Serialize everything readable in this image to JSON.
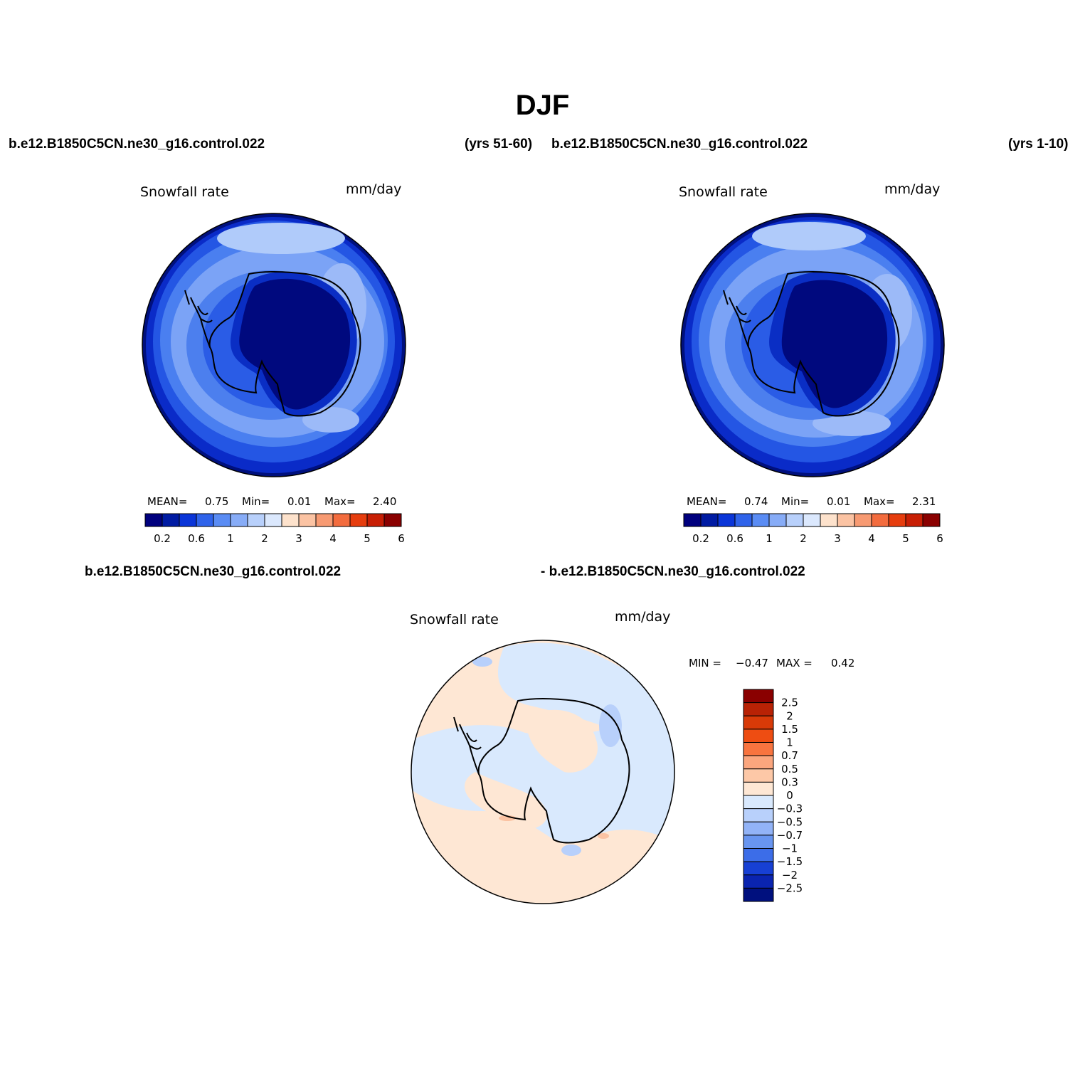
{
  "title": "DJF",
  "header": {
    "left_case": "b.e12.B1850C5CN.ne30_g16.control.022",
    "left_years": "(yrs 51-60)",
    "right_case": "b.e12.B1850C5CN.ne30_g16.control.022",
    "right_years": "(yrs 1-10)",
    "diff_left": "b.e12.B1850C5CN.ne30_g16.control.022",
    "diff_right": "- b.e12.B1850C5CN.ne30_g16.control.022"
  },
  "chart_data": [
    {
      "type": "heatmap",
      "projection": "polar-stereographic-south",
      "variable": "Snowfall rate",
      "units": "mm/day",
      "years": "(yrs 51-60)",
      "stats": {
        "mean_label": "MEAN=",
        "mean": "0.75",
        "min_label": "Min=",
        "min": "0.01",
        "max_label": "Max=",
        "max": "2.40"
      },
      "colorbar": {
        "orientation": "horizontal",
        "tick_labels": [
          "0.2",
          "0.6",
          "1",
          "2",
          "3",
          "4",
          "5",
          "6"
        ],
        "colors": [
          "#00007e",
          "#001ba3",
          "#0a35d8",
          "#2f63ea",
          "#5a8cf4",
          "#87acf7",
          "#b8d0fb",
          "#dbe8fd",
          "#fde2cc",
          "#fbc3a3",
          "#f79a72",
          "#f36c3e",
          "#e63d0e",
          "#c81f05",
          "#8a0000"
        ]
      }
    },
    {
      "type": "heatmap",
      "projection": "polar-stereographic-south",
      "variable": "Snowfall rate",
      "units": "mm/day",
      "years": "(yrs 1-10)",
      "stats": {
        "mean_label": "MEAN=",
        "mean": "0.74",
        "min_label": "Min=",
        "min": "0.01",
        "max_label": "Max=",
        "max": "2.31"
      },
      "colorbar": {
        "orientation": "horizontal",
        "tick_labels": [
          "0.2",
          "0.6",
          "1",
          "2",
          "3",
          "4",
          "5",
          "6"
        ],
        "colors": [
          "#00007e",
          "#001ba3",
          "#0a35d8",
          "#2f63ea",
          "#5a8cf4",
          "#87acf7",
          "#b8d0fb",
          "#dbe8fd",
          "#fde2cc",
          "#fbc3a3",
          "#f79a72",
          "#f36c3e",
          "#e63d0e",
          "#c81f05",
          "#8a0000"
        ]
      }
    },
    {
      "type": "heatmap",
      "projection": "polar-stereographic-south",
      "variable": "Snowfall rate",
      "units": "mm/day",
      "stats": {
        "min_label": "MIN =",
        "min": "−0.47",
        "max_label": "MAX =",
        "max": "0.42"
      },
      "colorbar": {
        "orientation": "vertical",
        "tick_labels": [
          "2.5",
          "2",
          "1.5",
          "1",
          "0.7",
          "0.5",
          "0.3",
          "0",
          "−0.3",
          "−0.5",
          "−0.7",
          "−1",
          "−1.5",
          "−2",
          "−2.5"
        ],
        "colors": [
          "#8a0000",
          "#b82205",
          "#d83a08",
          "#ee4d12",
          "#f8743f",
          "#fba67e",
          "#fdc8a7",
          "#fee7d4",
          "#d9e9fd",
          "#b8d0fb",
          "#92b3f7",
          "#6895f0",
          "#3c6de8",
          "#1740d4",
          "#0a24b0",
          "#00107e"
        ]
      }
    }
  ]
}
